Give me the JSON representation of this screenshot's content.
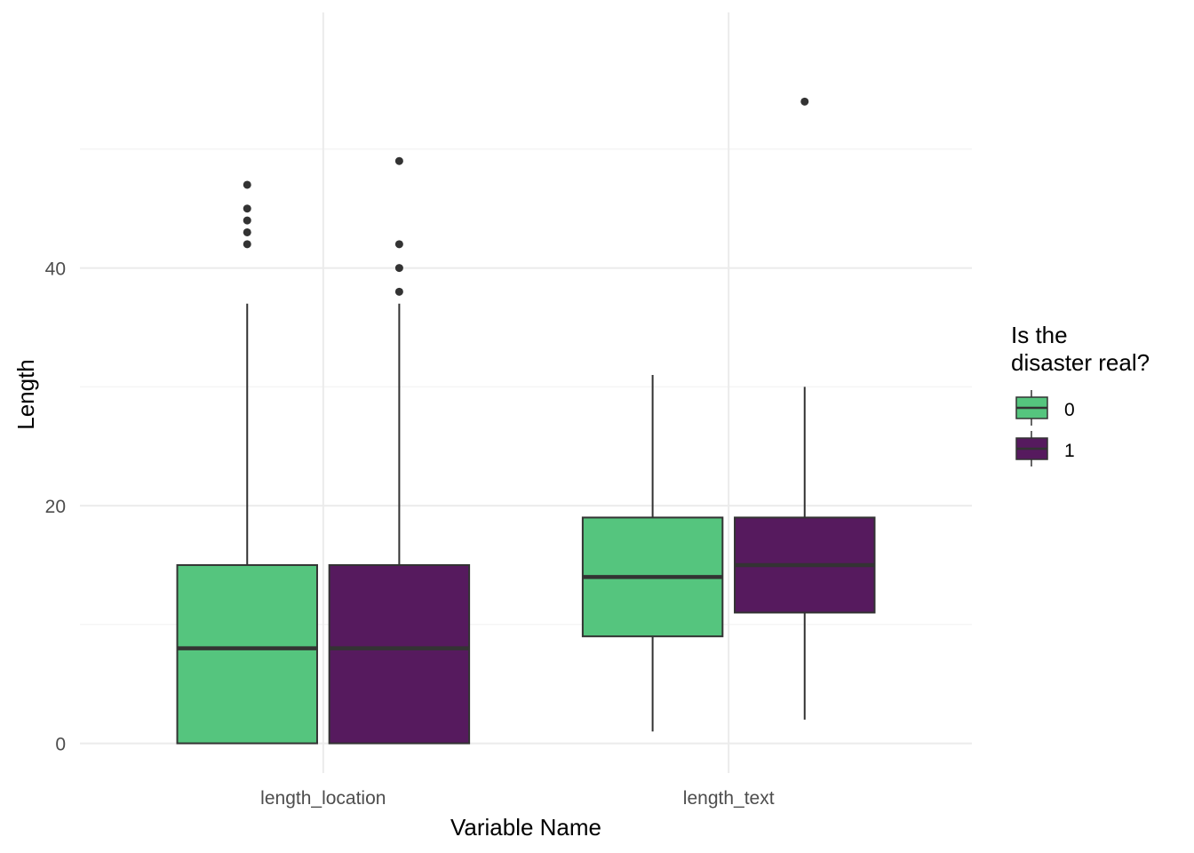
{
  "chart_data": {
    "type": "boxplot",
    "xlabel": "Variable Name",
    "ylabel": "Length",
    "categories": [
      "length_location",
      "length_text"
    ],
    "ylim": [
      -2.5,
      61.5
    ],
    "yticks": [
      0,
      20,
      40
    ],
    "grid": true,
    "legend": {
      "title_lines": [
        "Is the",
        "disaster real?"
      ],
      "position": "right",
      "entries": [
        {
          "label": "0",
          "color": "#55C57E"
        },
        {
          "label": "1",
          "color": "#561A5E"
        }
      ]
    },
    "series": [
      {
        "name": "0",
        "color": "#55C57E",
        "boxes": [
          {
            "category": "length_location",
            "lower_whisker": 0,
            "q1": 0,
            "median": 8,
            "q3": 15,
            "upper_whisker": 37,
            "outliers": [
              42,
              43,
              44,
              45,
              47
            ]
          },
          {
            "category": "length_text",
            "lower_whisker": 1,
            "q1": 9,
            "median": 14,
            "q3": 19,
            "upper_whisker": 31,
            "outliers": []
          }
        ]
      },
      {
        "name": "1",
        "color": "#561A5E",
        "boxes": [
          {
            "category": "length_location",
            "lower_whisker": 0,
            "q1": 0,
            "median": 8,
            "q3": 15,
            "upper_whisker": 37,
            "outliers": [
              38,
              40,
              42,
              49
            ]
          },
          {
            "category": "length_text",
            "lower_whisker": 2,
            "q1": 11,
            "median": 15,
            "q3": 19,
            "upper_whisker": 30,
            "outliers": [
              54
            ]
          }
        ]
      }
    ]
  }
}
